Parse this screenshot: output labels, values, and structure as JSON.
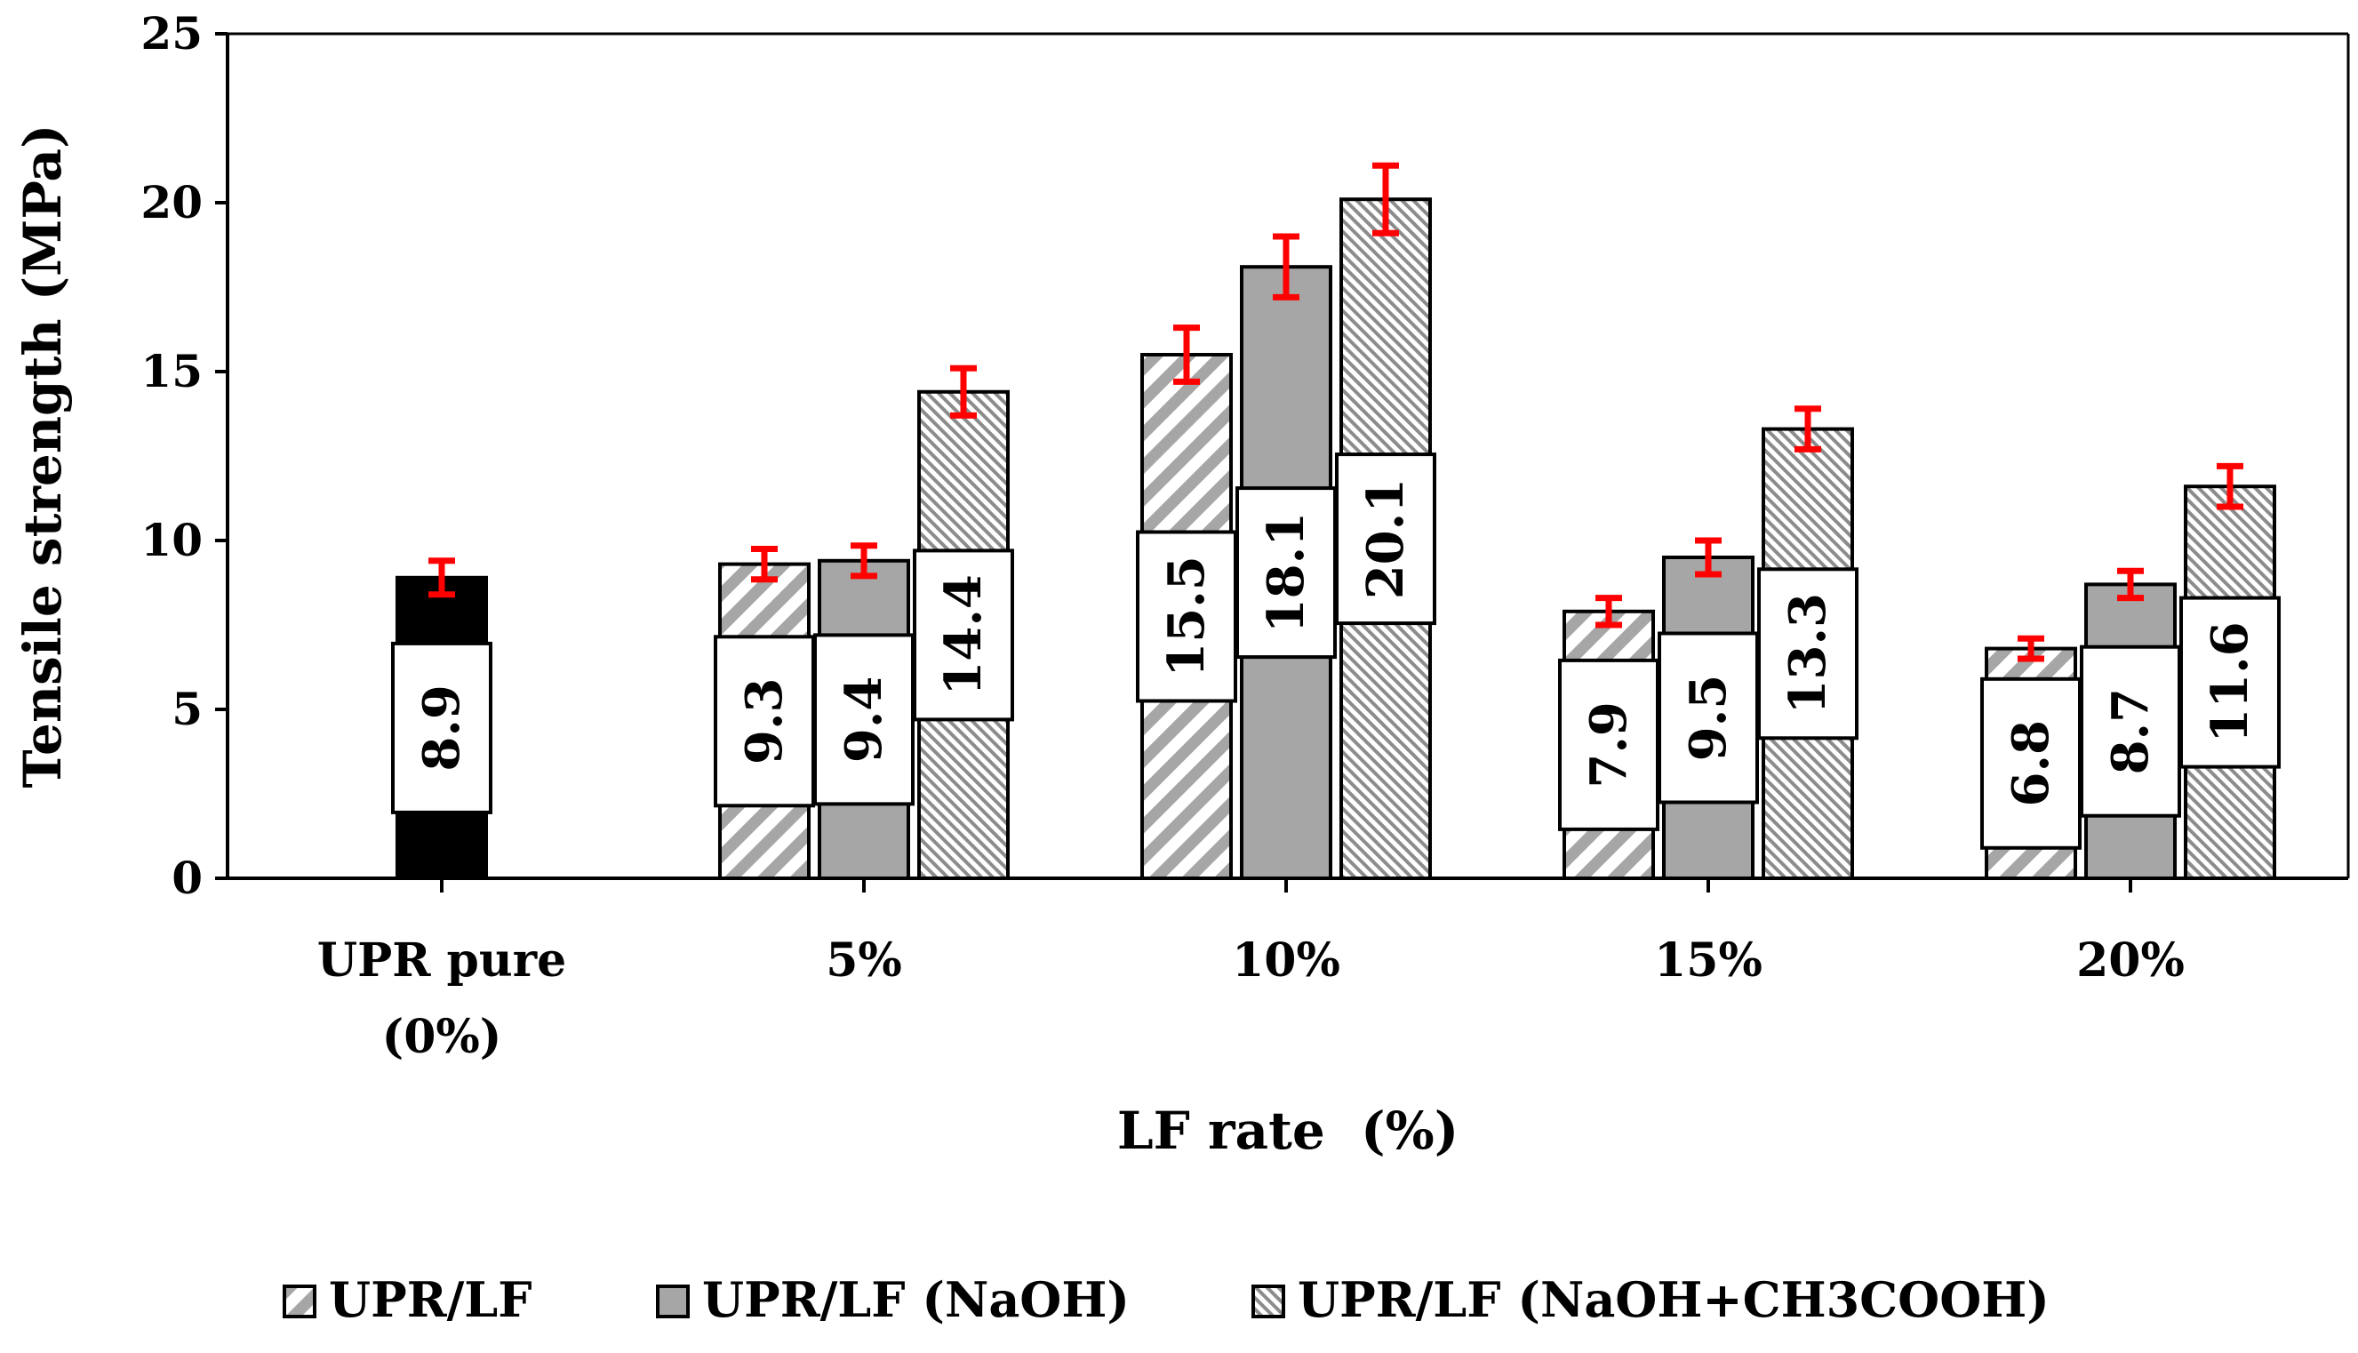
{
  "chart_data": {
    "type": "bar",
    "title": "",
    "xlabel": "LF rate  (%)",
    "ylabel": "Tensile strength (MPa)",
    "ylim": [
      0,
      25
    ],
    "yticks": [
      0,
      5,
      10,
      15,
      20,
      25
    ],
    "grid": false,
    "legend_position": "bottom",
    "categories": [
      {
        "lines": [
          "UPR pure",
          "(0%)"
        ]
      },
      {
        "lines": [
          "5%"
        ]
      },
      {
        "lines": [
          "10%"
        ]
      },
      {
        "lines": [
          "15%"
        ]
      },
      {
        "lines": [
          "20%"
        ]
      }
    ],
    "reference": {
      "value": 8.9,
      "label": "8.9",
      "error": 0.5,
      "color": "#000000"
    },
    "series": [
      {
        "name": "UPR/LF",
        "pattern": "diagonal-wide",
        "values": [
          null,
          9.3,
          15.5,
          7.9,
          6.8
        ],
        "errors": [
          null,
          0.45,
          0.8,
          0.4,
          0.3
        ],
        "labels": [
          "",
          "9.3",
          "15.5",
          "7.9",
          "6.8"
        ]
      },
      {
        "name": "UPR/LF (NaOH)",
        "pattern": "solid-gray",
        "values": [
          null,
          9.4,
          18.1,
          9.5,
          8.7
        ],
        "errors": [
          null,
          0.45,
          0.9,
          0.5,
          0.4
        ],
        "labels": [
          "",
          "9.4",
          "18.1",
          "9.5",
          "8.7"
        ]
      },
      {
        "name": "UPR/LF (NaOH+CH3COOH)",
        "pattern": "diagonal-fine",
        "values": [
          null,
          14.4,
          20.1,
          13.3,
          11.6
        ],
        "errors": [
          null,
          0.7,
          1.0,
          0.6,
          0.6
        ],
        "labels": [
          "",
          "14.4",
          "20.1",
          "13.3",
          "11.6"
        ]
      }
    ],
    "colors": {
      "bar_gray": "#a6a6a6",
      "error_bar": "#ff0000",
      "axis": "#000000"
    }
  }
}
